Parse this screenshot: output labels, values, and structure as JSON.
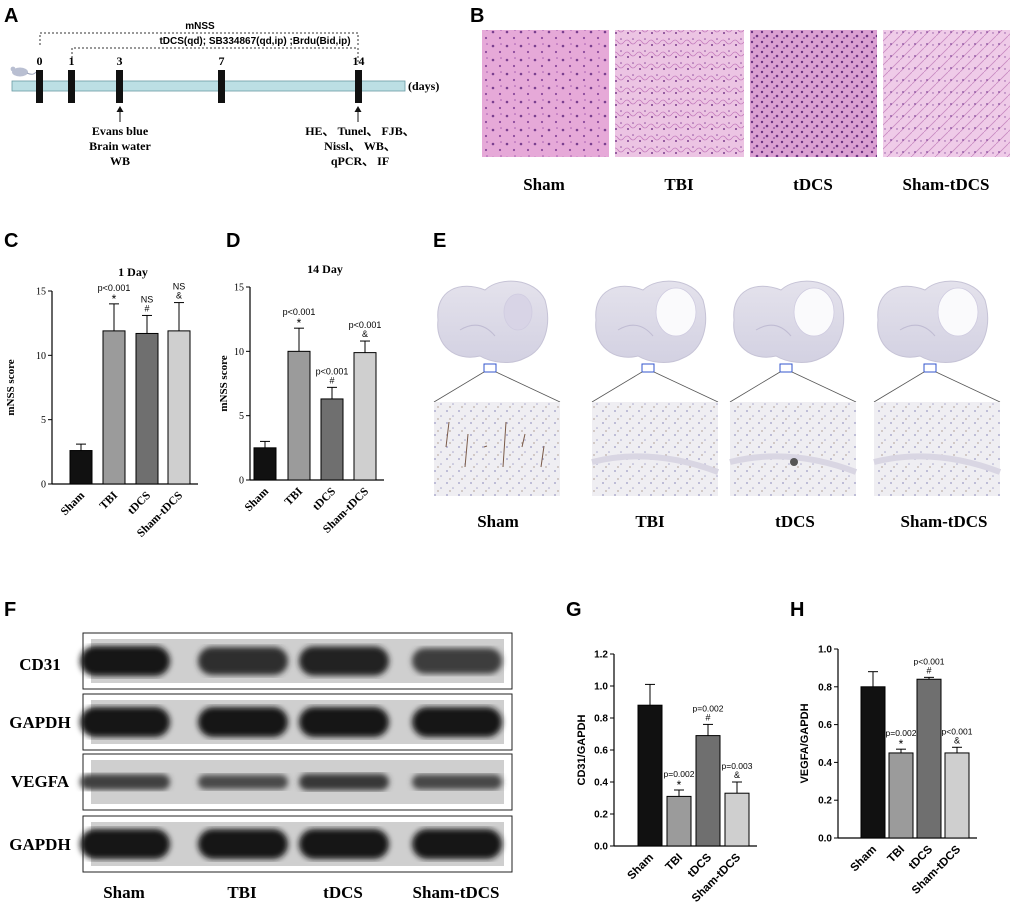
{
  "panels": {
    "A": {
      "letter": "A",
      "bracket_outer": "mNSS",
      "bracket_inner": "tDCS(qd); SB334867(qd,ip) ;Brdu(Bid,ip)",
      "days": [
        "0",
        "1",
        "3",
        "7",
        "14"
      ],
      "days_unit": "(days)",
      "day3_labels": [
        "Evans blue",
        "Brain water",
        "WB"
      ],
      "day14_labels": [
        "HE、 Tunel、 FJB、",
        "Nissl、 WB、",
        "qPCR、 IF"
      ]
    },
    "B": {
      "letter": "B",
      "labels": [
        "Sham",
        "TBI",
        "tDCS",
        "Sham-tDCS"
      ]
    },
    "E": {
      "letter": "E",
      "labels": [
        "Sham",
        "TBI",
        "tDCS",
        "Sham-tDCS"
      ]
    },
    "F": {
      "letter": "F",
      "rows": [
        "CD31",
        "GAPDH",
        "VEGFA",
        "GAPDH"
      ],
      "columns": [
        "Sham",
        "TBI",
        "tDCS",
        "Sham-tDCS"
      ]
    }
  },
  "chart_data": [
    {
      "panel": "C",
      "type": "bar",
      "title": "1 Day",
      "ylabel": "mNSS score",
      "categories": [
        "Sham",
        "TBI",
        "tDCS",
        "Sham-tDCS"
      ],
      "values": [
        2.6,
        11.9,
        11.7,
        11.9
      ],
      "errors": [
        0.5,
        2.1,
        1.4,
        2.2
      ],
      "annotations": [
        [],
        [
          "p<0.001",
          "*"
        ],
        [
          "NS",
          "#"
        ],
        [
          "NS",
          "&"
        ]
      ],
      "colors": [
        "#111111",
        "#9b9b9b",
        "#6f6f6f",
        "#cfcfcf"
      ],
      "ylim": [
        0,
        15
      ],
      "yticks": [
        "0",
        "5",
        "10",
        "15"
      ]
    },
    {
      "panel": "D",
      "type": "bar",
      "title": "14 Day",
      "ylabel": "mNSS score",
      "categories": [
        "Sham",
        "TBI",
        "tDCS",
        "Sham-tDCS"
      ],
      "values": [
        2.5,
        10.0,
        6.3,
        9.9
      ],
      "errors": [
        0.5,
        1.8,
        0.9,
        0.9
      ],
      "annotations": [
        [],
        [
          "p<0.001",
          "*"
        ],
        [
          "p<0.001",
          "#"
        ],
        [
          "p<0.001",
          "&"
        ]
      ],
      "colors": [
        "#111111",
        "#9b9b9b",
        "#6f6f6f",
        "#cfcfcf"
      ],
      "ylim": [
        0,
        15
      ],
      "yticks": [
        "0",
        "5",
        "10",
        "15"
      ]
    },
    {
      "panel": "G",
      "type": "bar",
      "title": "",
      "ylabel": "CD31/GAPDH",
      "categories": [
        "Sham",
        "TBI",
        "tDCS",
        "Sham-tDCS"
      ],
      "values": [
        0.88,
        0.31,
        0.69,
        0.33
      ],
      "errors": [
        0.13,
        0.04,
        0.07,
        0.07
      ],
      "annotations": [
        [],
        [
          "p=0.002",
          "*"
        ],
        [
          "p=0.002",
          "#"
        ],
        [
          "p=0.003",
          "&"
        ]
      ],
      "colors": [
        "#111111",
        "#9b9b9b",
        "#6f6f6f",
        "#cfcfcf"
      ],
      "ylim": [
        0,
        1.2
      ],
      "yticks": [
        "0.0",
        "0.2",
        "0.4",
        "0.6",
        "0.8",
        "1.0",
        "1.2"
      ]
    },
    {
      "panel": "H",
      "type": "bar",
      "title": "",
      "ylabel": "VEGFA/GAPDH",
      "categories": [
        "Sham",
        "TBI",
        "tDCS",
        "Sham-tDCS"
      ],
      "values": [
        0.8,
        0.45,
        0.84,
        0.45
      ],
      "errors": [
        0.08,
        0.02,
        0.01,
        0.03
      ],
      "annotations": [
        [],
        [
          "p=0.002",
          "*"
        ],
        [
          "p<0.001",
          "#"
        ],
        [
          "p<0.001",
          "&"
        ]
      ],
      "colors": [
        "#111111",
        "#9b9b9b",
        "#6f6f6f",
        "#cfcfcf"
      ],
      "ylim": [
        0,
        1.0
      ],
      "yticks": [
        "0.0",
        "0.2",
        "0.4",
        "0.6",
        "0.8",
        "1.0"
      ]
    }
  ]
}
